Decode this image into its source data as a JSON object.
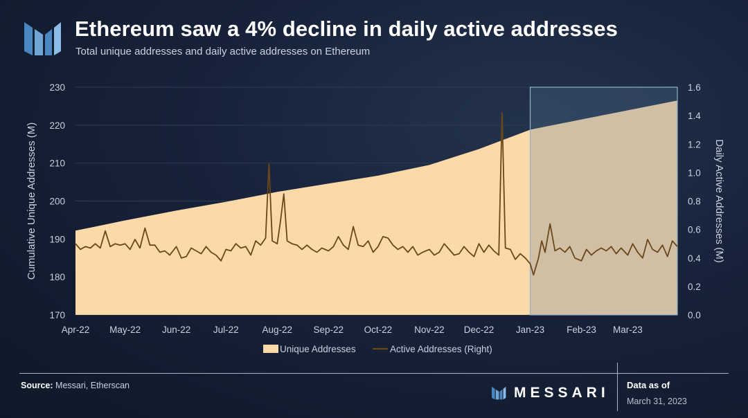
{
  "header": {
    "title": "Ethereum saw a 4% decline in daily active addresses",
    "subtitle": "Total unique addresses and daily active addresses on Ethereum"
  },
  "footer": {
    "source_label": "Source:",
    "source_text": "Messari, Etherscan",
    "brand": "MESSARI",
    "asof_label": "Data as of",
    "asof_date": "March 31, 2023"
  },
  "colors": {
    "area_fill": "#fcd9a8",
    "line": "#6b4619",
    "highlight_fill": "#5f7e99",
    "highlight_stroke": "#8fb0c8",
    "grid": "#2c3a52",
    "axis_text": "#c9d2de"
  },
  "chart_data": {
    "type": "area",
    "title": "Ethereum saw a 4% decline in daily active addresses",
    "subtitle": "Total unique addresses and daily active addresses on Ethereum",
    "x_tick_labels": [
      "Apr-22",
      "May-22",
      "Jun-22",
      "Jul-22",
      "Aug-22",
      "Sep-22",
      "Oct-22",
      "Nov-22",
      "Dec-22",
      "Jan-23",
      "Feb-23",
      "Mar-23"
    ],
    "left_axis": {
      "label": "Cumulative Unique Addresses (M)",
      "ylim": [
        170,
        230
      ],
      "ticks": [
        170,
        180,
        190,
        200,
        210,
        220,
        230
      ]
    },
    "right_axis": {
      "label": "Daily Active Addresses (M)",
      "ylim": [
        0.0,
        1.6
      ],
      "ticks": [
        "0.0",
        "0.2",
        "0.4",
        "0.6",
        "0.8",
        "1.0",
        "1.2",
        "1.4",
        "1.6"
      ]
    },
    "x_range": [
      "2022-04-01",
      "2023-03-31"
    ],
    "highlight_range": [
      "2023-01-01",
      "2023-03-31"
    ],
    "legend": [
      {
        "name": "Unique Addresses",
        "kind": "area"
      },
      {
        "name": "Active Addresses (Right)",
        "kind": "line"
      }
    ],
    "legend_position": "bottom-center",
    "series": [
      {
        "name": "Unique Addresses",
        "axis": "left",
        "points": [
          [
            "2022-04-01",
            192.2
          ],
          [
            "2022-05-01",
            194.9
          ],
          [
            "2022-06-01",
            197.5
          ],
          [
            "2022-07-01",
            199.8
          ],
          [
            "2022-08-01",
            202.4
          ],
          [
            "2022-09-01",
            204.6
          ],
          [
            "2022-10-01",
            206.7
          ],
          [
            "2022-11-01",
            209.5
          ],
          [
            "2022-12-01",
            213.7
          ],
          [
            "2023-01-01",
            218.8
          ],
          [
            "2023-02-01",
            221.5
          ],
          [
            "2023-03-01",
            223.9
          ],
          [
            "2023-03-31",
            226.5
          ]
        ]
      },
      {
        "name": "Active Addresses (Right)",
        "axis": "right",
        "points": [
          [
            "2022-04-01",
            0.5
          ],
          [
            "2022-04-04",
            0.46
          ],
          [
            "2022-04-07",
            0.48
          ],
          [
            "2022-04-10",
            0.47
          ],
          [
            "2022-04-13",
            0.5
          ],
          [
            "2022-04-16",
            0.47
          ],
          [
            "2022-04-19",
            0.59
          ],
          [
            "2022-04-22",
            0.48
          ],
          [
            "2022-04-25",
            0.5
          ],
          [
            "2022-04-28",
            0.49
          ],
          [
            "2022-05-01",
            0.5
          ],
          [
            "2022-05-04",
            0.46
          ],
          [
            "2022-05-07",
            0.53
          ],
          [
            "2022-05-10",
            0.47
          ],
          [
            "2022-05-13",
            0.61
          ],
          [
            "2022-05-16",
            0.49
          ],
          [
            "2022-05-19",
            0.49
          ],
          [
            "2022-05-22",
            0.44
          ],
          [
            "2022-05-25",
            0.45
          ],
          [
            "2022-05-28",
            0.42
          ],
          [
            "2022-06-01",
            0.48
          ],
          [
            "2022-06-04",
            0.4
          ],
          [
            "2022-06-07",
            0.41
          ],
          [
            "2022-06-10",
            0.47
          ],
          [
            "2022-06-13",
            0.45
          ],
          [
            "2022-06-16",
            0.43
          ],
          [
            "2022-06-19",
            0.48
          ],
          [
            "2022-06-22",
            0.44
          ],
          [
            "2022-06-25",
            0.42
          ],
          [
            "2022-06-28",
            0.38
          ],
          [
            "2022-07-01",
            0.46
          ],
          [
            "2022-07-04",
            0.45
          ],
          [
            "2022-07-07",
            0.5
          ],
          [
            "2022-07-10",
            0.47
          ],
          [
            "2022-07-13",
            0.48
          ],
          [
            "2022-07-16",
            0.42
          ],
          [
            "2022-07-19",
            0.52
          ],
          [
            "2022-07-22",
            0.49
          ],
          [
            "2022-07-25",
            0.54
          ],
          [
            "2022-07-27",
            1.06
          ],
          [
            "2022-07-29",
            0.52
          ],
          [
            "2022-08-01",
            0.5
          ],
          [
            "2022-08-03",
            0.66
          ],
          [
            "2022-08-05",
            0.85
          ],
          [
            "2022-08-07",
            0.52
          ],
          [
            "2022-08-10",
            0.5
          ],
          [
            "2022-08-13",
            0.49
          ],
          [
            "2022-08-16",
            0.46
          ],
          [
            "2022-08-19",
            0.49
          ],
          [
            "2022-08-22",
            0.46
          ],
          [
            "2022-08-25",
            0.44
          ],
          [
            "2022-08-28",
            0.47
          ],
          [
            "2022-09-01",
            0.45
          ],
          [
            "2022-09-04",
            0.48
          ],
          [
            "2022-09-07",
            0.55
          ],
          [
            "2022-09-10",
            0.49
          ],
          [
            "2022-09-13",
            0.46
          ],
          [
            "2022-09-16",
            0.62
          ],
          [
            "2022-09-19",
            0.49
          ],
          [
            "2022-09-22",
            0.48
          ],
          [
            "2022-09-25",
            0.52
          ],
          [
            "2022-09-28",
            0.44
          ],
          [
            "2022-10-01",
            0.48
          ],
          [
            "2022-10-04",
            0.55
          ],
          [
            "2022-10-07",
            0.54
          ],
          [
            "2022-10-10",
            0.49
          ],
          [
            "2022-10-13",
            0.46
          ],
          [
            "2022-10-16",
            0.48
          ],
          [
            "2022-10-19",
            0.44
          ],
          [
            "2022-10-22",
            0.48
          ],
          [
            "2022-10-25",
            0.42
          ],
          [
            "2022-10-28",
            0.44
          ],
          [
            "2022-11-01",
            0.46
          ],
          [
            "2022-11-04",
            0.42
          ],
          [
            "2022-11-07",
            0.44
          ],
          [
            "2022-11-10",
            0.5
          ],
          [
            "2022-11-13",
            0.46
          ],
          [
            "2022-11-16",
            0.42
          ],
          [
            "2022-11-19",
            0.43
          ],
          [
            "2022-11-22",
            0.48
          ],
          [
            "2022-11-25",
            0.44
          ],
          [
            "2022-11-28",
            0.41
          ],
          [
            "2022-12-01",
            0.5
          ],
          [
            "2022-12-04",
            0.44
          ],
          [
            "2022-12-07",
            0.49
          ],
          [
            "2022-12-10",
            0.45
          ],
          [
            "2022-12-13",
            0.42
          ],
          [
            "2022-12-15",
            1.42
          ],
          [
            "2022-12-17",
            0.47
          ],
          [
            "2022-12-20",
            0.46
          ],
          [
            "2022-12-23",
            0.39
          ],
          [
            "2022-12-26",
            0.43
          ],
          [
            "2022-12-29",
            0.4
          ],
          [
            "2023-01-01",
            0.36
          ],
          [
            "2023-01-03",
            0.28
          ],
          [
            "2023-01-06",
            0.4
          ],
          [
            "2023-01-08",
            0.52
          ],
          [
            "2023-01-10",
            0.44
          ],
          [
            "2023-01-13",
            0.64
          ],
          [
            "2023-01-16",
            0.45
          ],
          [
            "2023-01-19",
            0.47
          ],
          [
            "2023-01-22",
            0.44
          ],
          [
            "2023-01-25",
            0.48
          ],
          [
            "2023-01-28",
            0.4
          ],
          [
            "2023-02-01",
            0.38
          ],
          [
            "2023-02-04",
            0.46
          ],
          [
            "2023-02-07",
            0.42
          ],
          [
            "2023-02-10",
            0.45
          ],
          [
            "2023-02-13",
            0.47
          ],
          [
            "2023-02-16",
            0.45
          ],
          [
            "2023-02-19",
            0.48
          ],
          [
            "2023-02-22",
            0.43
          ],
          [
            "2023-02-25",
            0.47
          ],
          [
            "2023-03-01",
            0.42
          ],
          [
            "2023-03-04",
            0.5
          ],
          [
            "2023-03-07",
            0.44
          ],
          [
            "2023-03-10",
            0.4
          ],
          [
            "2023-03-13",
            0.53
          ],
          [
            "2023-03-16",
            0.46
          ],
          [
            "2023-03-19",
            0.44
          ],
          [
            "2023-03-22",
            0.49
          ],
          [
            "2023-03-25",
            0.41
          ],
          [
            "2023-03-28",
            0.52
          ],
          [
            "2023-03-31",
            0.48
          ]
        ]
      }
    ]
  }
}
